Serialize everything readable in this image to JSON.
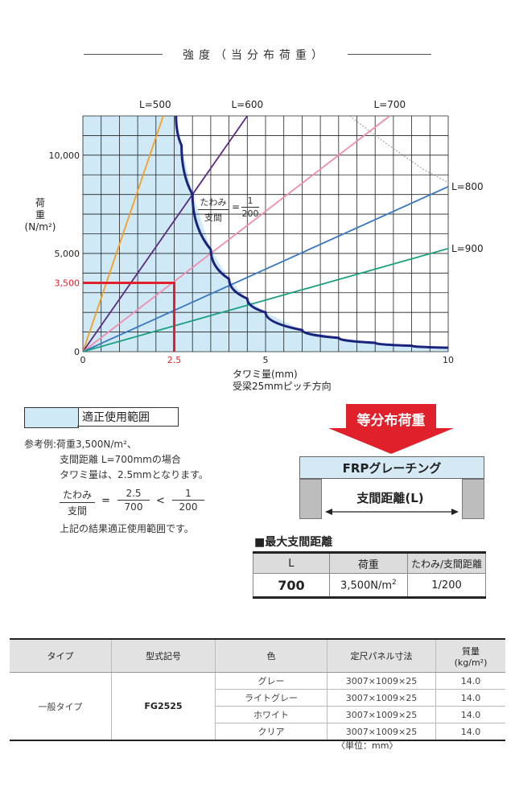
{
  "section_title": "強度（当分布荷重）",
  "chart_data": {
    "type": "line",
    "x_range": [
      0,
      10
    ],
    "y_range": [
      0,
      12000
    ],
    "x_ticks": [
      "0",
      "2.5",
      "5",
      "10"
    ],
    "y_ticks": [
      "0",
      "3,500",
      "5,000",
      "10,000"
    ],
    "xlabel": [
      "タワミ量(mm)",
      "受梁25mmピッチ方向"
    ],
    "ylabel": [
      "荷",
      "重",
      "(N/m²)"
    ],
    "series": [
      {
        "name": "L=500",
        "color": "#f5a020",
        "x": [
          0,
          2.2
        ],
        "y": [
          0,
          12000
        ]
      },
      {
        "name": "L=600",
        "color": "#5a2a80",
        "x": [
          0,
          4.5
        ],
        "y": [
          0,
          12000
        ]
      },
      {
        "name": "L=700",
        "color": "#f08cb0",
        "x": [
          0,
          8.4
        ],
        "y": [
          0,
          12000
        ]
      },
      {
        "name": "L=800",
        "color": "#3a78c0",
        "x": [
          0,
          10
        ],
        "y": [
          0,
          8400
        ]
      },
      {
        "name": "L=900",
        "color": "#1aa080",
        "x": [
          0,
          10
        ],
        "y": [
          0,
          5250
        ]
      }
    ],
    "limit_curve": {
      "color": "#1a237e",
      "x": [
        2.55,
        2.7,
        3.0,
        3.5,
        4.0,
        4.5,
        5.0,
        6.0,
        7.0,
        8.0,
        9.0,
        10.0
      ],
      "y": [
        12000,
        10500,
        8000,
        5200,
        3700,
        2700,
        2000,
        1100,
        700,
        450,
        300,
        200
      ]
    },
    "tail_curve": {
      "color": "#999999",
      "x": [
        7.3,
        8.3,
        9.3,
        10.0
      ],
      "y": [
        12000,
        10600,
        9300,
        8600
      ]
    },
    "curve_annotation": {
      "num": "たわみ",
      "den": "支間",
      "eq": "=",
      "num2": "1",
      "den2": "200"
    },
    "highlight": {
      "x": 2.5,
      "y": 3500,
      "color": "#e0202a"
    },
    "region_color": "#cfe9f7"
  },
  "legend": {
    "label": "適正使用範囲",
    "color": "#cfe9f7"
  },
  "reference": {
    "line1": "参考例:荷重3,500N/m²、",
    "line2": "支間距離 L=700mmの場合",
    "line3": "タワミ量は、2.5mmとなります。",
    "frac1_num": "たわみ",
    "frac1_den": "支間",
    "eq": "=",
    "frac2_num": "2.5",
    "frac2_den": "700",
    "lt": "<",
    "frac3_num": "1",
    "frac3_den": "200",
    "line4": "上記の結果適正使用範囲です。"
  },
  "diagram": {
    "load_label": "等分布荷重",
    "arrow_color": "#e0202a",
    "grating_label": "FRPグレーチング",
    "span_label": "支間距離(L)"
  },
  "max_span": {
    "title": "■最大支間距離",
    "headers": [
      "L",
      "荷重",
      "たわみ/支間距離"
    ],
    "row": {
      "l": "700",
      "load": "3,500N/m",
      "load_sup": "2",
      "ratio": "1/200"
    }
  },
  "spec_table": {
    "headers": {
      "type": "タイプ",
      "model": "型式記号",
      "color": "色",
      "size": "定尺パネル寸法",
      "weight": "質量",
      "weight_unit": "(kg/m²)"
    },
    "type": "一般タイプ",
    "model": "FG2525",
    "rows": [
      {
        "color": "グレー",
        "size": "3007×1009×25",
        "weight": "14.0"
      },
      {
        "color": "ライトグレー",
        "size": "3007×1009×25",
        "weight": "14.0"
      },
      {
        "color": "ホワイト",
        "size": "3007×1009×25",
        "weight": "14.0"
      },
      {
        "color": "クリア",
        "size": "3007×1009×25",
        "weight": "14.0"
      }
    ]
  },
  "unit_note": "〈単位：mm〉"
}
